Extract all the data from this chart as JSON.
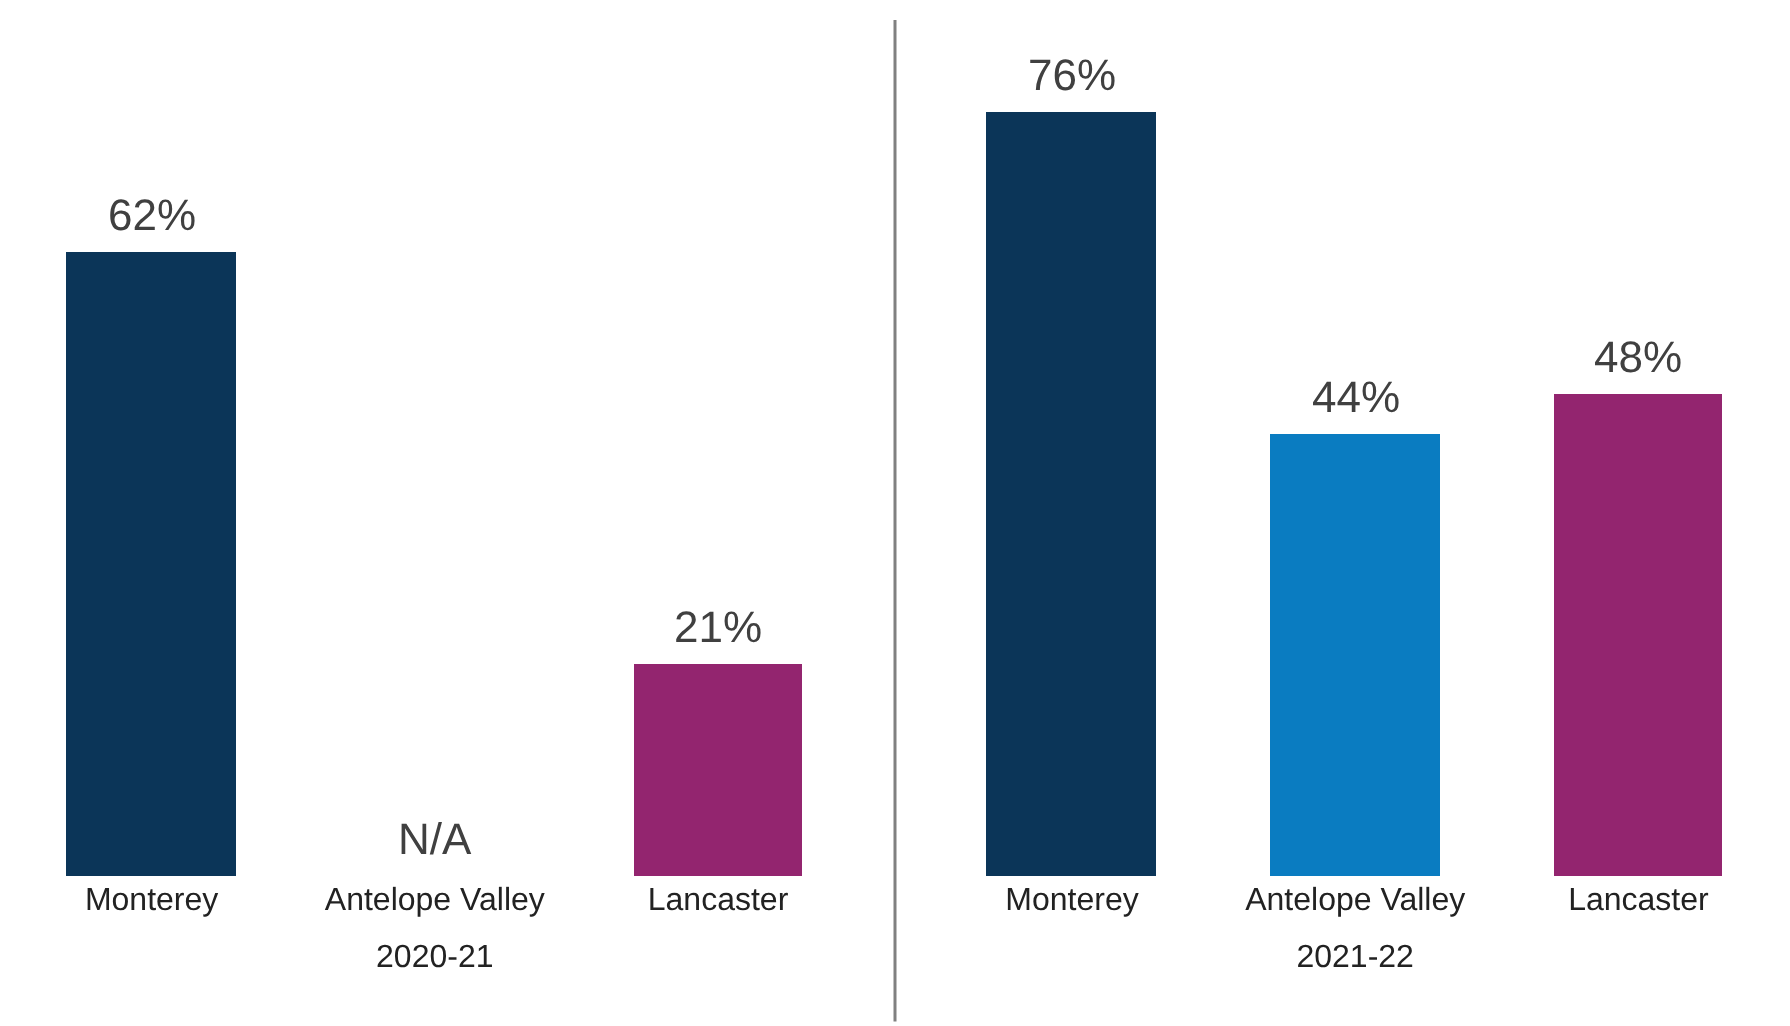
{
  "chart_data": [
    {
      "type": "bar",
      "xlabel": "2020-21",
      "categories": [
        "Monterey",
        "Antelope Valley",
        "Lancaster"
      ],
      "values": [
        62,
        null,
        21
      ],
      "colors": [
        "#0b3558",
        "#0a7cc1",
        "#93256f"
      ],
      "value_labels": [
        "62%",
        "N/A",
        "21%"
      ]
    },
    {
      "type": "bar",
      "xlabel": "2021-22",
      "categories": [
        "Monterey",
        "Antelope Valley",
        "Lancaster"
      ],
      "values": [
        76,
        44,
        48
      ],
      "colors": [
        "#0b3558",
        "#0a7cc1",
        "#93256f"
      ],
      "value_labels": [
        "76%",
        "44%",
        "48%"
      ]
    }
  ]
}
